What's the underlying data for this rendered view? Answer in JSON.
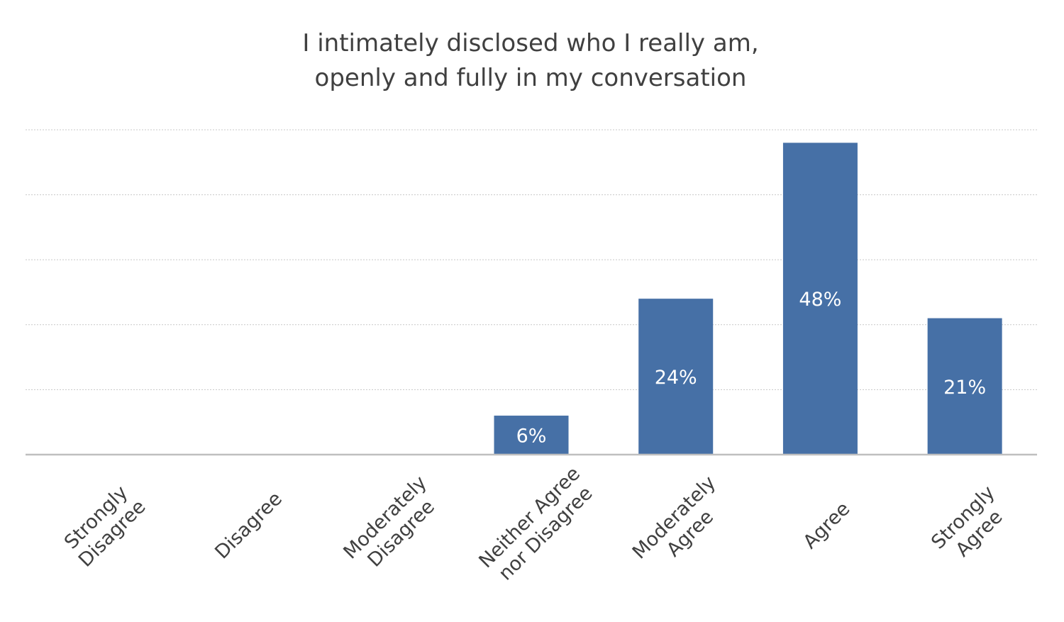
{
  "chart_data": {
    "type": "bar",
    "title_lines": [
      "I intimately disclosed who I really am,",
      "openly and fully in my conversation"
    ],
    "categories": [
      [
        "Strongly",
        "Disagree"
      ],
      [
        "Disagree"
      ],
      [
        "Moderately",
        "Disagree"
      ],
      [
        "Neither Agree",
        "nor Disagree"
      ],
      [
        "Moderately",
        "Agree"
      ],
      [
        "Agree"
      ],
      [
        "Strongly",
        "Agree"
      ]
    ],
    "values": [
      0,
      0,
      0,
      6,
      24,
      48,
      21
    ],
    "data_labels": [
      "",
      "",
      "",
      "6%",
      "24%",
      "48%",
      "21%"
    ],
    "ylim": [
      0,
      50
    ],
    "grid": true,
    "legend": "none",
    "colors": {
      "bar": "#4670a6",
      "title": "#404040",
      "grid": "#c8c8c8",
      "axis": "#bfbfbf"
    }
  }
}
